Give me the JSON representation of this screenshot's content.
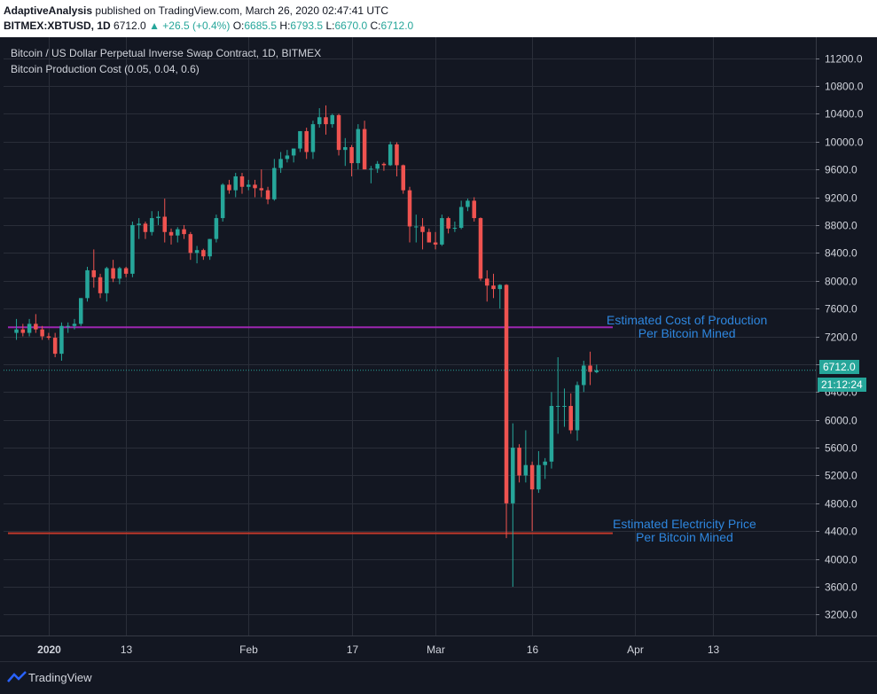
{
  "header": {
    "author": "AdaptiveAnalysis",
    "published": "published on TradingView.com, March 26, 2020 02:47:41 UTC",
    "symbol": "BITMEX:XBTUSD, 1D",
    "last": "6712.0",
    "change": "▲ +26.5 (+0.4%)",
    "o_label": "O:",
    "o_val": "6685.5",
    "h_label": "H:",
    "h_val": "6793.5",
    "l_label": "L:",
    "l_val": "6670.0",
    "c_label": "C:",
    "c_val": "6712.0"
  },
  "legend": {
    "title": "Bitcoin / US Dollar Perpetual Inverse Swap Contract, 1D, BITMEX",
    "indicator": "Bitcoin Production Cost (0.05, 0.04, 0.6)"
  },
  "annotations": {
    "production": [
      "Estimated Cost of Production",
      "Per Bitcoin Mined"
    ],
    "electricity": [
      "Estimated Electricity Price",
      "Per Bitcoin Mined"
    ]
  },
  "price_tag": "6712.0",
  "countdown_tag": "21:12:24",
  "footer": {
    "brand": "TradingView"
  },
  "colors": {
    "up": "#26a69a",
    "down": "#ef5350",
    "production_line": "#9c27b0",
    "electricity_line": "#c0392b",
    "annotation": "#2e86de"
  },
  "chart_data": {
    "type": "candlestick",
    "title": "Bitcoin / US Dollar Perpetual Inverse Swap Contract, 1D, BITMEX",
    "y_ticks": [
      11200,
      10800,
      10400,
      10000,
      9600,
      9200,
      8800,
      8400,
      8000,
      7600,
      7200,
      6800,
      6400,
      6000,
      5600,
      5200,
      4800,
      4400,
      4000,
      3600,
      3200
    ],
    "y_range": [
      2900,
      11500
    ],
    "x_ticks": [
      {
        "label": "2020",
        "bold": true,
        "date": "2020-01-01"
      },
      {
        "label": "13",
        "date": "2020-01-13"
      },
      {
        "label": "Feb",
        "date": "2020-02-01"
      },
      {
        "label": "17",
        "date": "2020-02-17"
      },
      {
        "label": "Mar",
        "date": "2020-03-01"
      },
      {
        "label": "16",
        "date": "2020-03-16"
      },
      {
        "label": "Apr",
        "date": "2020-04-01"
      },
      {
        "label": "13",
        "date": "2020-04-13"
      }
    ],
    "x_range": [
      "2019-12-25",
      "2020-04-29"
    ],
    "production_cost": 7330,
    "electricity_price": 4370,
    "candles": [
      {
        "d": "2019-12-27",
        "o": 7250,
        "h": 7450,
        "l": 7150,
        "c": 7300
      },
      {
        "d": "2019-12-28",
        "o": 7300,
        "h": 7380,
        "l": 7200,
        "c": 7250
      },
      {
        "d": "2019-12-29",
        "o": 7250,
        "h": 7450,
        "l": 7200,
        "c": 7380
      },
      {
        "d": "2019-12-30",
        "o": 7380,
        "h": 7520,
        "l": 7250,
        "c": 7300
      },
      {
        "d": "2019-12-31",
        "o": 7300,
        "h": 7350,
        "l": 7150,
        "c": 7200
      },
      {
        "d": "2020-01-01",
        "o": 7200,
        "h": 7250,
        "l": 7150,
        "c": 7180
      },
      {
        "d": "2020-01-02",
        "o": 7180,
        "h": 7250,
        "l": 6900,
        "c": 6950
      },
      {
        "d": "2020-01-03",
        "o": 6950,
        "h": 7400,
        "l": 6850,
        "c": 7350
      },
      {
        "d": "2020-01-04",
        "o": 7350,
        "h": 7400,
        "l": 7250,
        "c": 7350
      },
      {
        "d": "2020-01-05",
        "o": 7350,
        "h": 7450,
        "l": 7300,
        "c": 7380
      },
      {
        "d": "2020-01-06",
        "o": 7380,
        "h": 7750,
        "l": 7350,
        "c": 7750
      },
      {
        "d": "2020-01-07",
        "o": 7750,
        "h": 8200,
        "l": 7700,
        "c": 8150
      },
      {
        "d": "2020-01-08",
        "o": 8150,
        "h": 8450,
        "l": 7900,
        "c": 8050
      },
      {
        "d": "2020-01-09",
        "o": 8050,
        "h": 8100,
        "l": 7750,
        "c": 7820
      },
      {
        "d": "2020-01-10",
        "o": 7820,
        "h": 8200,
        "l": 7700,
        "c": 8180
      },
      {
        "d": "2020-01-11",
        "o": 8180,
        "h": 8300,
        "l": 7980,
        "c": 8030
      },
      {
        "d": "2020-01-12",
        "o": 8030,
        "h": 8200,
        "l": 7950,
        "c": 8180
      },
      {
        "d": "2020-01-13",
        "o": 8180,
        "h": 8200,
        "l": 8050,
        "c": 8100
      },
      {
        "d": "2020-01-14",
        "o": 8100,
        "h": 8850,
        "l": 8050,
        "c": 8800
      },
      {
        "d": "2020-01-15",
        "o": 8800,
        "h": 8900,
        "l": 8600,
        "c": 8820
      },
      {
        "d": "2020-01-16",
        "o": 8820,
        "h": 8850,
        "l": 8600,
        "c": 8700
      },
      {
        "d": "2020-01-17",
        "o": 8700,
        "h": 9000,
        "l": 8650,
        "c": 8900
      },
      {
        "d": "2020-01-18",
        "o": 8900,
        "h": 9000,
        "l": 8800,
        "c": 8920
      },
      {
        "d": "2020-01-19",
        "o": 8920,
        "h": 9180,
        "l": 8550,
        "c": 8700
      },
      {
        "d": "2020-01-20",
        "o": 8700,
        "h": 8750,
        "l": 8520,
        "c": 8650
      },
      {
        "d": "2020-01-21",
        "o": 8650,
        "h": 8770,
        "l": 8550,
        "c": 8740
      },
      {
        "d": "2020-01-22",
        "o": 8740,
        "h": 8800,
        "l": 8600,
        "c": 8670
      },
      {
        "d": "2020-01-23",
        "o": 8670,
        "h": 8700,
        "l": 8300,
        "c": 8400
      },
      {
        "d": "2020-01-24",
        "o": 8400,
        "h": 8500,
        "l": 8250,
        "c": 8440
      },
      {
        "d": "2020-01-25",
        "o": 8440,
        "h": 8460,
        "l": 8300,
        "c": 8350
      },
      {
        "d": "2020-01-26",
        "o": 8350,
        "h": 8600,
        "l": 8300,
        "c": 8600
      },
      {
        "d": "2020-01-27",
        "o": 8600,
        "h": 8950,
        "l": 8550,
        "c": 8900
      },
      {
        "d": "2020-01-28",
        "o": 8900,
        "h": 9400,
        "l": 8850,
        "c": 9380
      },
      {
        "d": "2020-01-29",
        "o": 9380,
        "h": 9450,
        "l": 9250,
        "c": 9300
      },
      {
        "d": "2020-01-30",
        "o": 9300,
        "h": 9550,
        "l": 9200,
        "c": 9500
      },
      {
        "d": "2020-01-31",
        "o": 9500,
        "h": 9550,
        "l": 9250,
        "c": 9350
      },
      {
        "d": "2020-02-01",
        "o": 9350,
        "h": 9450,
        "l": 9300,
        "c": 9380
      },
      {
        "d": "2020-02-02",
        "o": 9380,
        "h": 9450,
        "l": 9200,
        "c": 9330
      },
      {
        "d": "2020-02-03",
        "o": 9330,
        "h": 9600,
        "l": 9200,
        "c": 9300
      },
      {
        "d": "2020-02-04",
        "o": 9300,
        "h": 9350,
        "l": 9100,
        "c": 9170
      },
      {
        "d": "2020-02-05",
        "o": 9170,
        "h": 9750,
        "l": 9150,
        "c": 9620
      },
      {
        "d": "2020-02-06",
        "o": 9620,
        "h": 9850,
        "l": 9550,
        "c": 9750
      },
      {
        "d": "2020-02-07",
        "o": 9750,
        "h": 9880,
        "l": 9700,
        "c": 9800
      },
      {
        "d": "2020-02-08",
        "o": 9800,
        "h": 9900,
        "l": 9700,
        "c": 9900
      },
      {
        "d": "2020-02-09",
        "o": 9900,
        "h": 10150,
        "l": 9850,
        "c": 10150
      },
      {
        "d": "2020-02-10",
        "o": 10150,
        "h": 10200,
        "l": 9750,
        "c": 9850
      },
      {
        "d": "2020-02-11",
        "o": 9850,
        "h": 10300,
        "l": 9750,
        "c": 10250
      },
      {
        "d": "2020-02-12",
        "o": 10250,
        "h": 10480,
        "l": 10200,
        "c": 10350
      },
      {
        "d": "2020-02-13",
        "o": 10350,
        "h": 10520,
        "l": 10100,
        "c": 10250
      },
      {
        "d": "2020-02-14",
        "o": 10250,
        "h": 10400,
        "l": 10200,
        "c": 10380
      },
      {
        "d": "2020-02-15",
        "o": 10380,
        "h": 10400,
        "l": 9800,
        "c": 9880
      },
      {
        "d": "2020-02-16",
        "o": 9880,
        "h": 10050,
        "l": 9650,
        "c": 9920
      },
      {
        "d": "2020-02-17",
        "o": 9920,
        "h": 9950,
        "l": 9500,
        "c": 9690
      },
      {
        "d": "2020-02-18",
        "o": 9690,
        "h": 10250,
        "l": 9600,
        "c": 10180
      },
      {
        "d": "2020-02-19",
        "o": 10180,
        "h": 10300,
        "l": 9600,
        "c": 9600
      },
      {
        "d": "2020-02-20",
        "o": 9600,
        "h": 9650,
        "l": 9400,
        "c": 9610
      },
      {
        "d": "2020-02-21",
        "o": 9610,
        "h": 9720,
        "l": 9550,
        "c": 9680
      },
      {
        "d": "2020-02-22",
        "o": 9680,
        "h": 9700,
        "l": 9580,
        "c": 9660
      },
      {
        "d": "2020-02-23",
        "o": 9660,
        "h": 10000,
        "l": 9650,
        "c": 9960
      },
      {
        "d": "2020-02-24",
        "o": 9960,
        "h": 9990,
        "l": 9500,
        "c": 9660
      },
      {
        "d": "2020-02-25",
        "o": 9660,
        "h": 9670,
        "l": 9250,
        "c": 9300
      },
      {
        "d": "2020-02-26",
        "o": 9300,
        "h": 9350,
        "l": 8550,
        "c": 8780
      },
      {
        "d": "2020-02-27",
        "o": 8780,
        "h": 8950,
        "l": 8550,
        "c": 8780
      },
      {
        "d": "2020-02-28",
        "o": 8780,
        "h": 8900,
        "l": 8450,
        "c": 8700
      },
      {
        "d": "2020-02-29",
        "o": 8700,
        "h": 8750,
        "l": 8550,
        "c": 8550
      },
      {
        "d": "2020-03-01",
        "o": 8550,
        "h": 8700,
        "l": 8450,
        "c": 8520
      },
      {
        "d": "2020-03-02",
        "o": 8520,
        "h": 8950,
        "l": 8500,
        "c": 8900
      },
      {
        "d": "2020-03-03",
        "o": 8900,
        "h": 8920,
        "l": 8680,
        "c": 8750
      },
      {
        "d": "2020-03-04",
        "o": 8750,
        "h": 8850,
        "l": 8700,
        "c": 8760
      },
      {
        "d": "2020-03-05",
        "o": 8760,
        "h": 9150,
        "l": 8740,
        "c": 9060
      },
      {
        "d": "2020-03-06",
        "o": 9060,
        "h": 9180,
        "l": 9000,
        "c": 9150
      },
      {
        "d": "2020-03-07",
        "o": 9150,
        "h": 9200,
        "l": 8850,
        "c": 8900
      },
      {
        "d": "2020-03-08",
        "o": 8900,
        "h": 8910,
        "l": 8000,
        "c": 8030
      },
      {
        "d": "2020-03-09",
        "o": 8030,
        "h": 8150,
        "l": 7700,
        "c": 7930
      },
      {
        "d": "2020-03-10",
        "o": 7930,
        "h": 8100,
        "l": 7750,
        "c": 7880
      },
      {
        "d": "2020-03-11",
        "o": 7880,
        "h": 7950,
        "l": 7600,
        "c": 7940
      },
      {
        "d": "2020-03-12",
        "o": 7940,
        "h": 7950,
        "l": 4300,
        "c": 4800
      },
      {
        "d": "2020-03-13",
        "o": 4800,
        "h": 5950,
        "l": 3600,
        "c": 5600
      },
      {
        "d": "2020-03-14",
        "o": 5600,
        "h": 5650,
        "l": 5100,
        "c": 5200
      },
      {
        "d": "2020-03-15",
        "o": 5200,
        "h": 5850,
        "l": 5100,
        "c": 5350
      },
      {
        "d": "2020-03-16",
        "o": 5350,
        "h": 5400,
        "l": 4400,
        "c": 5000
      },
      {
        "d": "2020-03-17",
        "o": 5000,
        "h": 5550,
        "l": 4950,
        "c": 5350
      },
      {
        "d": "2020-03-18",
        "o": 5350,
        "h": 5450,
        "l": 5150,
        "c": 5400
      },
      {
        "d": "2020-03-19",
        "o": 5400,
        "h": 6400,
        "l": 5300,
        "c": 6200
      },
      {
        "d": "2020-03-20",
        "o": 6200,
        "h": 6900,
        "l": 5800,
        "c": 6200
      },
      {
        "d": "2020-03-21",
        "o": 6200,
        "h": 6450,
        "l": 5900,
        "c": 6200
      },
      {
        "d": "2020-03-22",
        "o": 6200,
        "h": 6380,
        "l": 5800,
        "c": 5850
      },
      {
        "d": "2020-03-23",
        "o": 5850,
        "h": 6550,
        "l": 5700,
        "c": 6500
      },
      {
        "d": "2020-03-24",
        "o": 6500,
        "h": 6850,
        "l": 6400,
        "c": 6780
      },
      {
        "d": "2020-03-25",
        "o": 6780,
        "h": 6980,
        "l": 6500,
        "c": 6690
      },
      {
        "d": "2020-03-26",
        "o": 6685.5,
        "h": 6793.5,
        "l": 6670,
        "c": 6712
      }
    ]
  }
}
